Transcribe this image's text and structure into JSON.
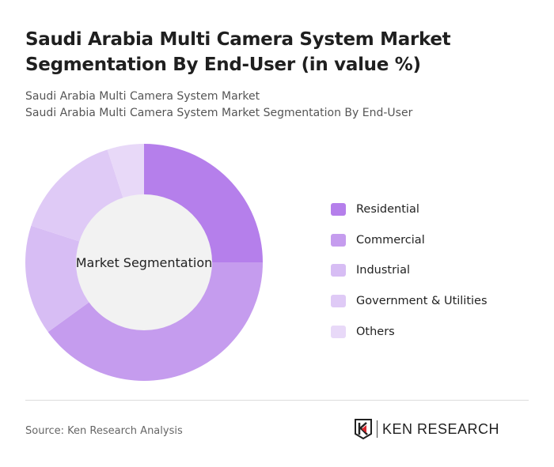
{
  "title": "Saudi Arabia Multi Camera System Market Segmentation By End-User (in value %)",
  "subtitle1": "Saudi Arabia Multi Camera System Market",
  "subtitle2": "Saudi Arabia Multi Camera System Market Segmentation By End-User",
  "source": "Source: Ken Research Analysis",
  "logo_text": "KEN RESEARCH",
  "chart_data": {
    "type": "pie",
    "donut": true,
    "center_label": "Market Segmentation",
    "categories": [
      "Residential",
      "Commercial",
      "Industrial",
      "Government & Utilities",
      "Others"
    ],
    "values": [
      25,
      40,
      15,
      15,
      5
    ],
    "colors": [
      "#b57feb",
      "#c59cee",
      "#d7bdf4",
      "#dfcaf6",
      "#e8d9f8"
    ],
    "legend_position": "right"
  }
}
